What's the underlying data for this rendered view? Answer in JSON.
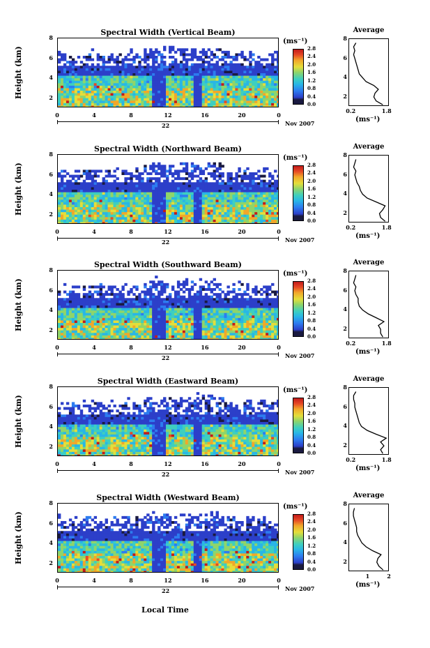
{
  "chart_data": [
    {
      "type": "heatmap",
      "title": "Spectral Width (Vertical Beam)",
      "ylabel": "Height (km)",
      "yticks": [
        "2",
        "4",
        "6",
        "8"
      ],
      "ylim": [
        1,
        8
      ],
      "xticks": [
        "0",
        "4",
        "8",
        "12",
        "16",
        "20",
        "0"
      ],
      "xlim": [
        0,
        24
      ],
      "day_label": "22",
      "month_label": "Nov 2007",
      "colorbar": {
        "unit": "(ms⁻¹)",
        "ticks": [
          "0.0",
          "0.4",
          "0.8",
          "1.2",
          "1.6",
          "2.0",
          "2.4",
          "2.8"
        ],
        "range": [
          0,
          2.8
        ]
      },
      "average": {
        "title": "Average",
        "xticks": [
          "0.2",
          "1.8"
        ],
        "xlim": [
          0.1,
          1.9
        ],
        "yticks": [
          "2",
          "4",
          "6",
          "8"
        ],
        "unit": "(ms⁻¹)",
        "height_km": [
          1.2,
          1.6,
          2.0,
          2.4,
          2.8,
          3.2,
          3.6,
          4.0,
          4.4,
          4.8,
          5.2,
          5.6,
          6.0,
          6.4,
          6.8,
          7.2,
          7.6
        ],
        "width": [
          1.6,
          1.3,
          1.2,
          1.25,
          1.4,
          1.2,
          0.85,
          0.7,
          0.55,
          0.5,
          0.45,
          0.4,
          0.35,
          0.3,
          0.35,
          0.3,
          0.4
        ]
      }
    },
    {
      "type": "heatmap",
      "title": "Spectral Width (Northward Beam)",
      "ylabel": "Height (km)",
      "yticks": [
        "2",
        "4",
        "6",
        "8"
      ],
      "ylim": [
        1,
        8
      ],
      "xticks": [
        "0",
        "4",
        "8",
        "12",
        "16",
        "20",
        "0"
      ],
      "xlim": [
        0,
        24
      ],
      "day_label": "22",
      "month_label": "Nov 2007",
      "colorbar": {
        "unit": "(ms⁻¹)",
        "ticks": [
          "0.0",
          "0.4",
          "0.8",
          "1.2",
          "1.6",
          "2.0",
          "2.4",
          "2.8"
        ],
        "range": [
          0,
          2.8
        ]
      },
      "average": {
        "title": "Average",
        "xticks": [
          "0.2",
          "1.8"
        ],
        "xlim": [
          0.1,
          1.9
        ],
        "yticks": [
          "2",
          "4",
          "6",
          "8"
        ],
        "unit": "(ms⁻¹)",
        "height_km": [
          1.2,
          1.6,
          2.0,
          2.4,
          2.8,
          3.2,
          3.6,
          4.0,
          4.4,
          4.8,
          5.2,
          5.6,
          6.0,
          6.4,
          6.8,
          7.2,
          7.6
        ],
        "width": [
          1.7,
          1.5,
          1.45,
          1.6,
          1.7,
          1.3,
          0.9,
          0.7,
          0.6,
          0.55,
          0.45,
          0.4,
          0.35,
          0.4,
          0.3,
          0.35,
          0.4
        ]
      }
    },
    {
      "type": "heatmap",
      "title": "Spectral Width (Southward Beam)",
      "ylabel": "Height (km)",
      "yticks": [
        "2",
        "4",
        "6",
        "8"
      ],
      "ylim": [
        1,
        8
      ],
      "xticks": [
        "0",
        "4",
        "8",
        "12",
        "16",
        "20",
        "0"
      ],
      "xlim": [
        0,
        24
      ],
      "day_label": "22",
      "month_label": "Nov 2007",
      "colorbar": {
        "unit": "(ms⁻¹)",
        "ticks": [
          "0.0",
          "0.4",
          "0.8",
          "1.2",
          "1.6",
          "2.0",
          "2.4",
          "2.8"
        ],
        "range": [
          0,
          2.8
        ]
      },
      "average": {
        "title": "Average",
        "xticks": [
          "0.2",
          "1.8"
        ],
        "xlim": [
          0.1,
          1.9
        ],
        "yticks": [
          "2",
          "4",
          "6",
          "8"
        ],
        "unit": "(ms⁻¹)",
        "height_km": [
          1.2,
          1.6,
          2.0,
          2.4,
          2.8,
          3.2,
          3.6,
          4.0,
          4.4,
          4.8,
          5.2,
          5.6,
          6.0,
          6.4,
          6.8,
          7.2,
          7.6
        ],
        "width": [
          1.6,
          1.5,
          1.5,
          1.4,
          1.65,
          1.3,
          0.95,
          0.7,
          0.55,
          0.5,
          0.5,
          0.4,
          0.35,
          0.4,
          0.3,
          0.35,
          0.4
        ]
      }
    },
    {
      "type": "heatmap",
      "title": "Spectral Width (Eastward Beam)",
      "ylabel": "Height (km)",
      "yticks": [
        "2",
        "4",
        "6",
        "8"
      ],
      "ylim": [
        1,
        8
      ],
      "xticks": [
        "0",
        "4",
        "8",
        "12",
        "16",
        "20",
        "0"
      ],
      "xlim": [
        0,
        24
      ],
      "day_label": "22",
      "month_label": "Nov 2007",
      "colorbar": {
        "unit": "(ms⁻¹)",
        "ticks": [
          "0.0",
          "0.4",
          "0.8",
          "1.2",
          "1.6",
          "2.0",
          "2.4",
          "2.8"
        ],
        "range": [
          0,
          2.8
        ]
      },
      "average": {
        "title": "Average",
        "xticks": [
          "0.2",
          "1.8"
        ],
        "xlim": [
          0.1,
          1.9
        ],
        "yticks": [
          "2",
          "4",
          "6",
          "8"
        ],
        "unit": "(ms⁻¹)",
        "height_km": [
          1.2,
          1.6,
          2.0,
          2.4,
          2.8,
          3.2,
          3.6,
          4.0,
          4.4,
          4.8,
          5.2,
          5.6,
          6.0,
          6.4,
          6.8,
          7.2,
          7.6
        ],
        "width": [
          1.6,
          1.5,
          1.65,
          1.5,
          1.75,
          1.3,
          0.9,
          0.65,
          0.55,
          0.5,
          0.45,
          0.4,
          0.35,
          0.35,
          0.3,
          0.3,
          0.4
        ]
      }
    },
    {
      "type": "heatmap",
      "title": "Spectral Width (Westward Beam)",
      "ylabel": "Height (km)",
      "yticks": [
        "2",
        "4",
        "6",
        "8"
      ],
      "ylim": [
        1,
        8
      ],
      "xticks": [
        "0",
        "4",
        "8",
        "12",
        "16",
        "20",
        "0"
      ],
      "xlim": [
        0,
        24
      ],
      "day_label": "22",
      "month_label": "Nov 2007",
      "colorbar": {
        "unit": "(ms⁻¹)",
        "ticks": [
          "0.0",
          "0.4",
          "0.8",
          "1.2",
          "1.6",
          "2.0",
          "2.4",
          "2.8"
        ],
        "range": [
          0,
          2.8
        ]
      },
      "average": {
        "title": "Average",
        "xticks": [
          "1",
          "2"
        ],
        "xlim": [
          0.1,
          2.0
        ],
        "yticks": [
          "2",
          "4",
          "6",
          "8"
        ],
        "unit": "(ms⁻¹)",
        "height_km": [
          1.2,
          1.6,
          2.0,
          2.4,
          2.8,
          3.2,
          3.6,
          4.0,
          4.4,
          4.8,
          5.2,
          5.6,
          6.0,
          6.4,
          6.8,
          7.2,
          7.6
        ],
        "width": [
          1.7,
          1.5,
          1.4,
          1.45,
          1.6,
          1.2,
          0.9,
          0.7,
          0.6,
          0.5,
          0.45,
          0.45,
          0.4,
          0.35,
          0.3,
          0.3,
          0.35
        ]
      }
    }
  ],
  "xlabel": "Local Time"
}
